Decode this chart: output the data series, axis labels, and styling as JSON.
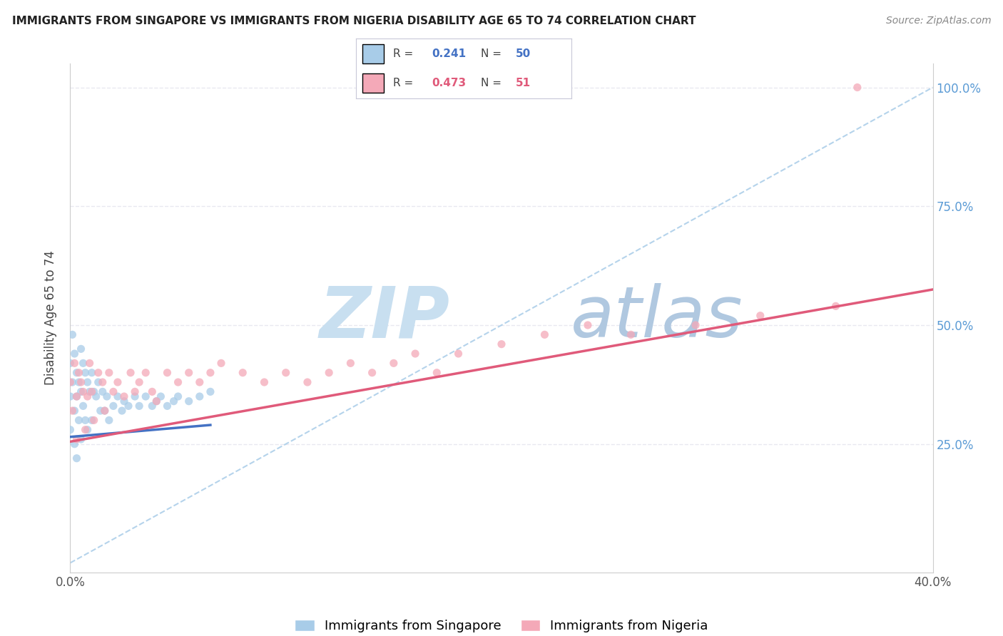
{
  "title": "IMMIGRANTS FROM SINGAPORE VS IMMIGRANTS FROM NIGERIA DISABILITY AGE 65 TO 74 CORRELATION CHART",
  "source": "Source: ZipAtlas.com",
  "ylabel": "Disability Age 65 to 74",
  "xlim": [
    0.0,
    0.4
  ],
  "ylim": [
    -0.02,
    1.05
  ],
  "x_tick_positions": [
    0.0,
    0.1,
    0.2,
    0.3,
    0.4
  ],
  "x_tick_labels": [
    "0.0%",
    "",
    "",
    "",
    "40.0%"
  ],
  "y_tick_positions": [
    0.25,
    0.5,
    0.75,
    1.0
  ],
  "y_tick_labels": [
    "25.0%",
    "50.0%",
    "75.0%",
    "100.0%"
  ],
  "singapore_color": "#a8cce8",
  "nigeria_color": "#f4a9b8",
  "singapore_line_color": "#4472c4",
  "nigeria_line_color": "#e05a7a",
  "ref_line_color": "#a8cce8",
  "R_singapore": 0.241,
  "N_singapore": 50,
  "R_nigeria": 0.473,
  "N_nigeria": 51,
  "sg_line_x0": 0.0,
  "sg_line_y0": 0.265,
  "sg_line_x1": 0.065,
  "sg_line_y1": 0.29,
  "ng_line_x0": 0.0,
  "ng_line_y0": 0.255,
  "ng_line_x1": 0.4,
  "ng_line_y1": 0.575,
  "ref_line_x0": 0.0,
  "ref_line_y0": 0.0,
  "ref_line_x1": 0.4,
  "ref_line_y1": 1.0,
  "grid_color": "#e8e8f0",
  "watermark_color": "#dce8f5",
  "title_fontsize": 11,
  "source_fontsize": 10,
  "tick_fontsize": 12,
  "label_fontsize": 12
}
